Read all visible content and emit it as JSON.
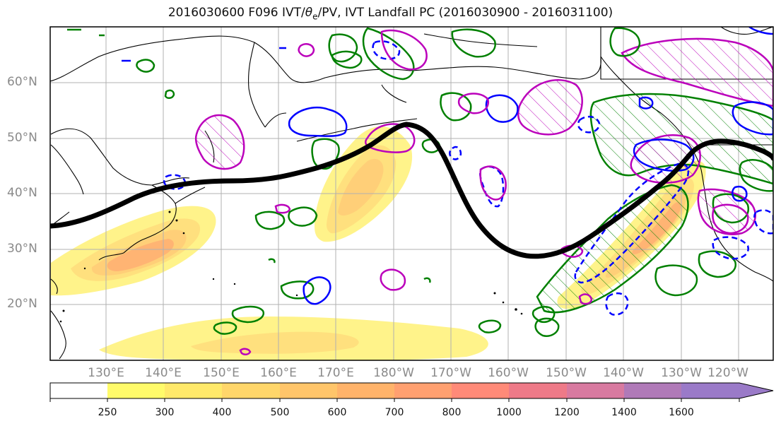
{
  "title": {
    "prefix": "2016030600 F096 IVT/",
    "theta": "θ",
    "theta_sub": "e",
    "suffix": "/PV, IVT Landfall PC (2016030900 - 2016031100)"
  },
  "map": {
    "lat_labels": [
      "20°N",
      "30°N",
      "40°N",
      "50°N",
      "60°N"
    ],
    "lon_labels": [
      "130°E",
      "140°E",
      "150°E",
      "160°E",
      "170°E",
      "180°W",
      "170°W",
      "160°W",
      "150°W",
      "140°W",
      "130°W",
      "120°W"
    ],
    "colors": {
      "jet_line": "#000000",
      "pv_contour": "#008000",
      "theta_contour": "#0000ff",
      "landfall_contour": "#bb00bb",
      "coastline": "#000000",
      "grid": "#b0b0b0"
    }
  },
  "colorbar": {
    "labels": [
      "250",
      "300",
      "400",
      "500",
      "600",
      "700",
      "800",
      "1000",
      "1200",
      "1400",
      "1600"
    ],
    "colors": [
      "#ffffff",
      "#fffb6a",
      "#ffe96a",
      "#ffd66a",
      "#ffc56a",
      "#ffb36a",
      "#ffa070",
      "#ff8a78",
      "#ee7a88",
      "#d87aa0",
      "#b07ab8",
      "#9a7ac8"
    ]
  }
}
